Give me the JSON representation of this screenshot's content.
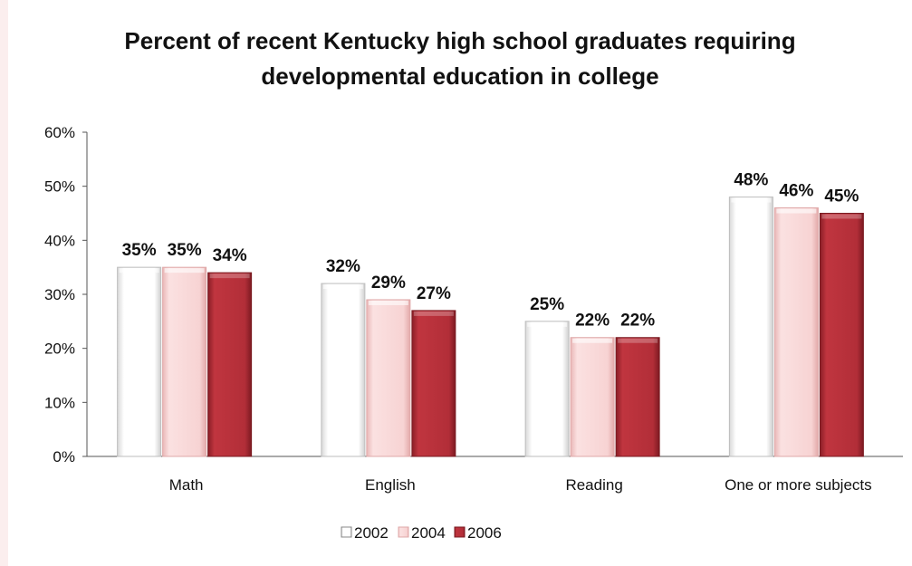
{
  "chart_data": {
    "type": "bar",
    "title": "Percent of recent Kentucky high school graduates requiring\ndevelopmental education in college",
    "xlabel": "",
    "ylabel": "",
    "ylim": [
      0,
      60
    ],
    "yticks": [
      "0%",
      "10%",
      "20%",
      "30%",
      "40%",
      "50%",
      "60%"
    ],
    "categories": [
      "Math",
      "English",
      "Reading",
      "One or more subjects"
    ],
    "series": [
      {
        "name": "2002",
        "values": [
          35,
          32,
          25,
          48
        ],
        "labels": [
          "35%",
          "32%",
          "25%",
          "48%"
        ],
        "color": "#ffffff"
      },
      {
        "name": "2004",
        "values": [
          35,
          29,
          22,
          46
        ],
        "labels": [
          "35%",
          "29%",
          "22%",
          "46%"
        ],
        "color": "#f6cfcf"
      },
      {
        "name": "2006",
        "values": [
          34,
          27,
          22,
          45
        ],
        "labels": [
          "34%",
          "27%",
          "22%",
          "45%"
        ],
        "color": "#b5303a"
      }
    ],
    "grid": false,
    "legend_position": "bottom"
  }
}
